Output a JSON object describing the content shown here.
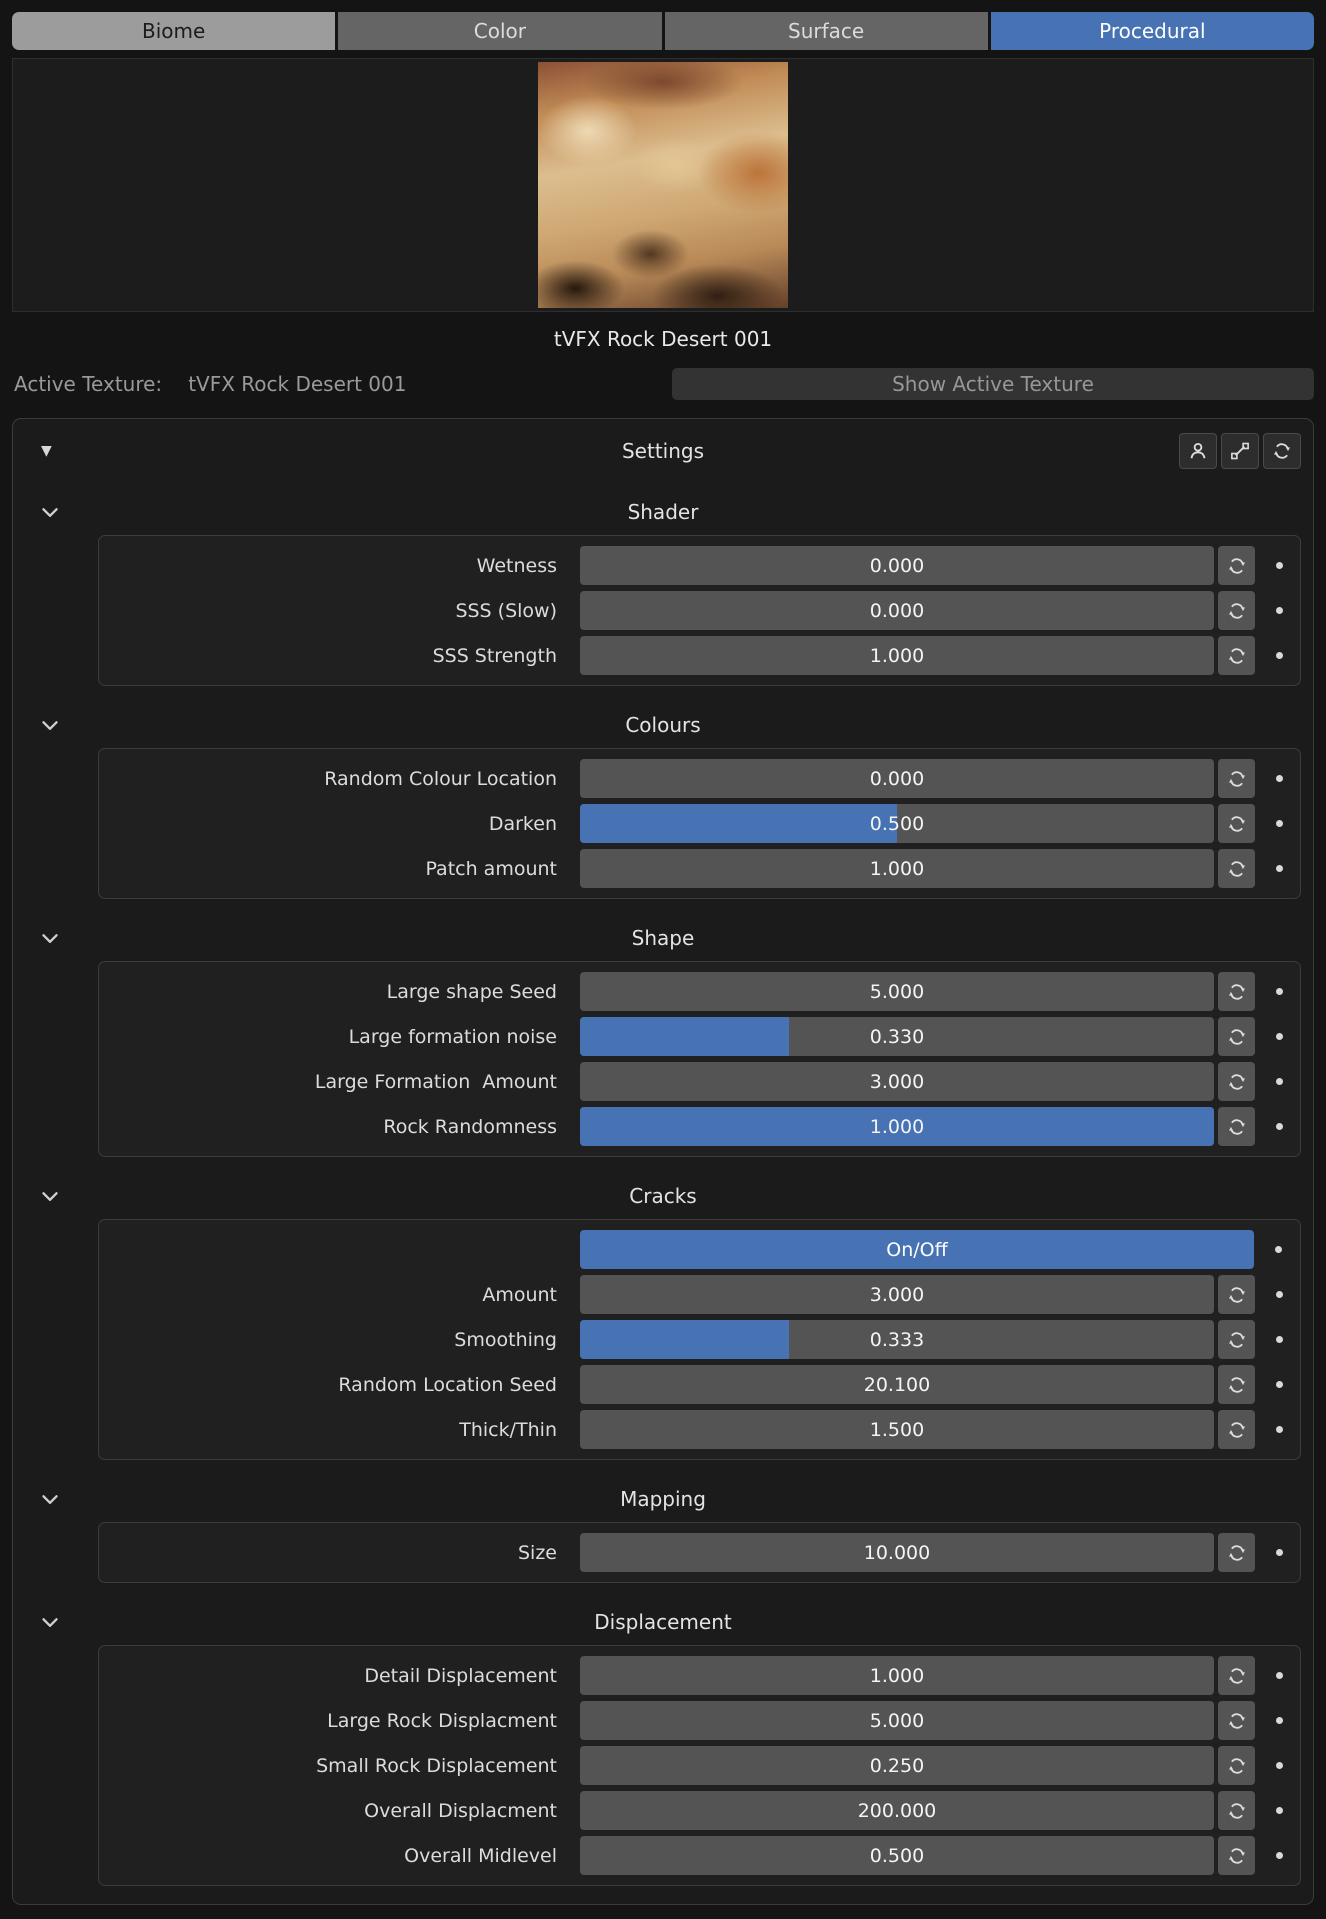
{
  "tabs": [
    {
      "label": "Biome"
    },
    {
      "label": "Color"
    },
    {
      "label": "Surface"
    },
    {
      "label": "Procedural"
    }
  ],
  "active_tab": "Procedural",
  "preview": {
    "caption": "tVFX Rock Desert 001"
  },
  "active_texture": {
    "label": "Active Texture:",
    "name": "tVFX Rock Desert 001",
    "button_label": "Show Active Texture"
  },
  "settings": {
    "title": "Settings",
    "header_icons": [
      "user-icon",
      "driver-icon",
      "refresh-icon"
    ],
    "sections": [
      {
        "title": "Shader",
        "rows": [
          {
            "label": "Wetness",
            "value": "0.000",
            "fill_pct": 0
          },
          {
            "label": "SSS (Slow)",
            "value": "0.000",
            "fill_pct": 0
          },
          {
            "label": "SSS Strength",
            "value": "1.000",
            "fill_pct": 0
          }
        ]
      },
      {
        "title": "Colours",
        "rows": [
          {
            "label": "Random Colour Location",
            "value": "0.000",
            "fill_pct": 0
          },
          {
            "label": "Darken",
            "value": "0.500",
            "fill_pct": 50
          },
          {
            "label": "Patch amount",
            "value": "1.000",
            "fill_pct": 0
          }
        ]
      },
      {
        "title": "Shape",
        "rows": [
          {
            "label": "Large shape Seed",
            "value": "5.000",
            "fill_pct": 0
          },
          {
            "label": "Large formation noise",
            "value": "0.330",
            "fill_pct": 33
          },
          {
            "label": "Large Formation  Amount",
            "value": "3.000",
            "fill_pct": 0
          },
          {
            "label": "Rock Randomness",
            "value": "1.000",
            "fill_pct": 100
          }
        ]
      },
      {
        "title": "Cracks",
        "rows": [
          {
            "type": "toggle",
            "label": "",
            "value": "On/Off"
          },
          {
            "label": "Amount",
            "value": "3.000",
            "fill_pct": 0
          },
          {
            "label": "Smoothing",
            "value": "0.333",
            "fill_pct": 33
          },
          {
            "label": "Random Location Seed",
            "value": "20.100",
            "fill_pct": 0
          },
          {
            "label": "Thick/Thin",
            "value": "1.500",
            "fill_pct": 0
          }
        ]
      },
      {
        "title": "Mapping",
        "rows": [
          {
            "label": "Size",
            "value": "10.000",
            "fill_pct": 0
          }
        ]
      },
      {
        "title": "Displacement",
        "rows": [
          {
            "label": "Detail Displacement",
            "value": "1.000",
            "fill_pct": 0
          },
          {
            "label": "Large Rock Displacment",
            "value": "5.000",
            "fill_pct": 0
          },
          {
            "label": "Small Rock Displacement",
            "value": "0.250",
            "fill_pct": 0
          },
          {
            "label": "Overall Displacment",
            "value": "200.000",
            "fill_pct": 0
          },
          {
            "label": "Overall Midlevel",
            "value": "0.500",
            "fill_pct": 0
          }
        ]
      }
    ]
  },
  "colors": {
    "accent": "#4772b3",
    "slider_bg": "#545454",
    "panel_bg": "#1b1b1b",
    "inactive_tab_bg": "#656565",
    "biome_tab_bg": "#9c9c9c"
  }
}
